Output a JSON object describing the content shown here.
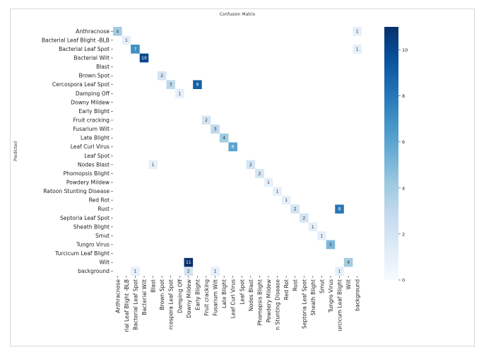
{
  "chart_data": {
    "type": "heatmap",
    "title": "Confusion Matrix",
    "xlabel": "",
    "ylabel": "Predicted",
    "categories": [
      "Anthracnose",
      "Bacterial Leaf Blight -BLB",
      "Bacterial Leaf Spot",
      "Bacterial Wilt",
      "Blast",
      "Brown Spot",
      "Cercospora Leaf Spot",
      "Damping Off",
      "Downy Mildew",
      "Early Blight",
      "Fruit cracking",
      "Fusarium Wilt",
      "Late Blight",
      "Leaf Curl Virus",
      "Leaf Spot",
      "Nodes Blast",
      "Phomopsis Blight",
      "Powdery Mildew",
      "Ratoon Stunting Disease",
      "Red Rot",
      "Rust",
      "Septoria Leaf Spot",
      "Sheath Blight",
      "Smut",
      "Tungro Virus",
      "Turcicum Leaf Blight",
      "Wilt",
      "background"
    ],
    "x_tick_labels": [
      "Anthracnose",
      "rial Leaf Blight -BLB",
      "Bacterial Leaf Spot",
      "Bacterial Wilt",
      "Blast",
      "Brown Spot",
      "rcospora Leaf Spot",
      "Damping Off",
      "Downy Mildew",
      "Early Blight",
      "Fruit cracking",
      "Fusarium Wilt",
      "Late Blight",
      "Leaf Curl Virus",
      "Leaf Spot",
      "Nodes Blast",
      "Phomopsis Blight",
      "Powdery Mildew",
      "n Stunting Disease",
      "Red Rot",
      "Rust",
      "Septoria Leaf Spot",
      "Sheath Blight",
      "Smut",
      "Tungro Virus",
      "urcicum Leaf Blight",
      "Wilt",
      "background"
    ],
    "cells": [
      {
        "row": 0,
        "col": 0,
        "value": 4
      },
      {
        "row": 0,
        "col": 27,
        "value": 1
      },
      {
        "row": 1,
        "col": 1,
        "value": 1
      },
      {
        "row": 2,
        "col": 2,
        "value": 7
      },
      {
        "row": 2,
        "col": 27,
        "value": 1
      },
      {
        "row": 3,
        "col": 3,
        "value": 10
      },
      {
        "row": 5,
        "col": 5,
        "value": 2
      },
      {
        "row": 6,
        "col": 6,
        "value": 3
      },
      {
        "row": 6,
        "col": 9,
        "value": 9
      },
      {
        "row": 7,
        "col": 7,
        "value": 1
      },
      {
        "row": 10,
        "col": 10,
        "value": 2
      },
      {
        "row": 11,
        "col": 11,
        "value": 3
      },
      {
        "row": 12,
        "col": 12,
        "value": 4
      },
      {
        "row": 13,
        "col": 13,
        "value": 6
      },
      {
        "row": 15,
        "col": 4,
        "value": 1
      },
      {
        "row": 15,
        "col": 15,
        "value": 2
      },
      {
        "row": 16,
        "col": 16,
        "value": 2
      },
      {
        "row": 17,
        "col": 17,
        "value": 1
      },
      {
        "row": 18,
        "col": 18,
        "value": 1
      },
      {
        "row": 19,
        "col": 19,
        "value": 1
      },
      {
        "row": 20,
        "col": 20,
        "value": 2
      },
      {
        "row": 20,
        "col": 25,
        "value": 8
      },
      {
        "row": 21,
        "col": 21,
        "value": 2
      },
      {
        "row": 22,
        "col": 22,
        "value": 1
      },
      {
        "row": 23,
        "col": 23,
        "value": 1
      },
      {
        "row": 24,
        "col": 24,
        "value": 5
      },
      {
        "row": 26,
        "col": 8,
        "value": 11
      },
      {
        "row": 26,
        "col": 26,
        "value": 4
      },
      {
        "row": 27,
        "col": 2,
        "value": 1
      },
      {
        "row": 27,
        "col": 8,
        "value": 2
      },
      {
        "row": 27,
        "col": 11,
        "value": 1
      },
      {
        "row": 27,
        "col": 25,
        "value": 1
      }
    ],
    "colorbar": {
      "min": 0,
      "max": 11,
      "ticks": [
        0,
        2,
        4,
        6,
        8,
        10
      ],
      "colormap": "Blues"
    },
    "colors": {
      "low": "#f7fbff",
      "high": "#08306b"
    }
  }
}
